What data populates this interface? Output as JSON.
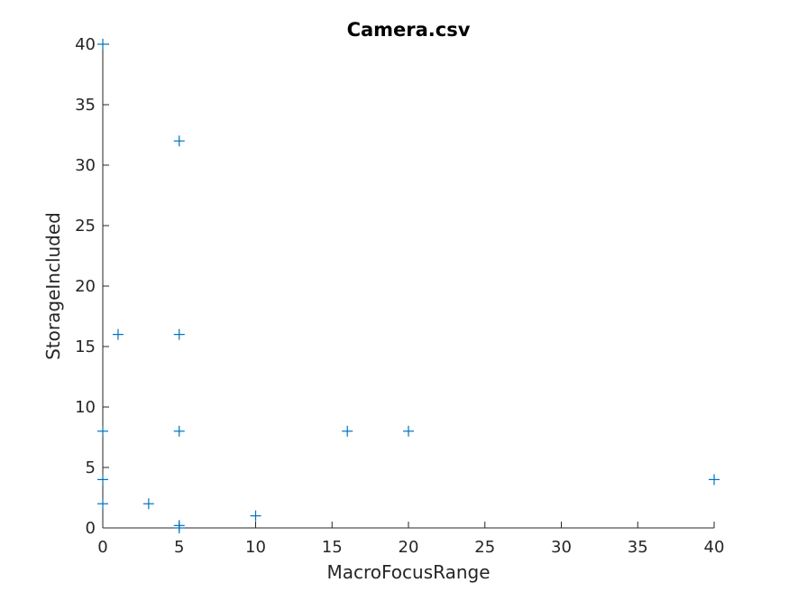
{
  "chart_data": {
    "type": "scatter",
    "title": "Camera.csv",
    "xlabel": "MacroFocusRange",
    "ylabel": "StorageIncluded",
    "xlim": [
      0,
      40
    ],
    "ylim": [
      0,
      40
    ],
    "xticks": [
      0,
      5,
      10,
      15,
      20,
      25,
      30,
      35,
      40
    ],
    "yticks": [
      0,
      5,
      10,
      15,
      20,
      25,
      30,
      35,
      40
    ],
    "grid": false,
    "marker": "+",
    "marker_color": "#0072BD",
    "points": [
      {
        "x": 0,
        "y": 40
      },
      {
        "x": 5,
        "y": 32
      },
      {
        "x": 1,
        "y": 16
      },
      {
        "x": 5,
        "y": 16
      },
      {
        "x": 0,
        "y": 8
      },
      {
        "x": 5,
        "y": 8
      },
      {
        "x": 16,
        "y": 8
      },
      {
        "x": 20,
        "y": 8
      },
      {
        "x": 0,
        "y": 4
      },
      {
        "x": 40,
        "y": 4
      },
      {
        "x": 0,
        "y": 2
      },
      {
        "x": 3,
        "y": 2
      },
      {
        "x": 10,
        "y": 1
      },
      {
        "x": 5,
        "y": 0.2
      },
      {
        "x": 5,
        "y": 0
      }
    ]
  }
}
